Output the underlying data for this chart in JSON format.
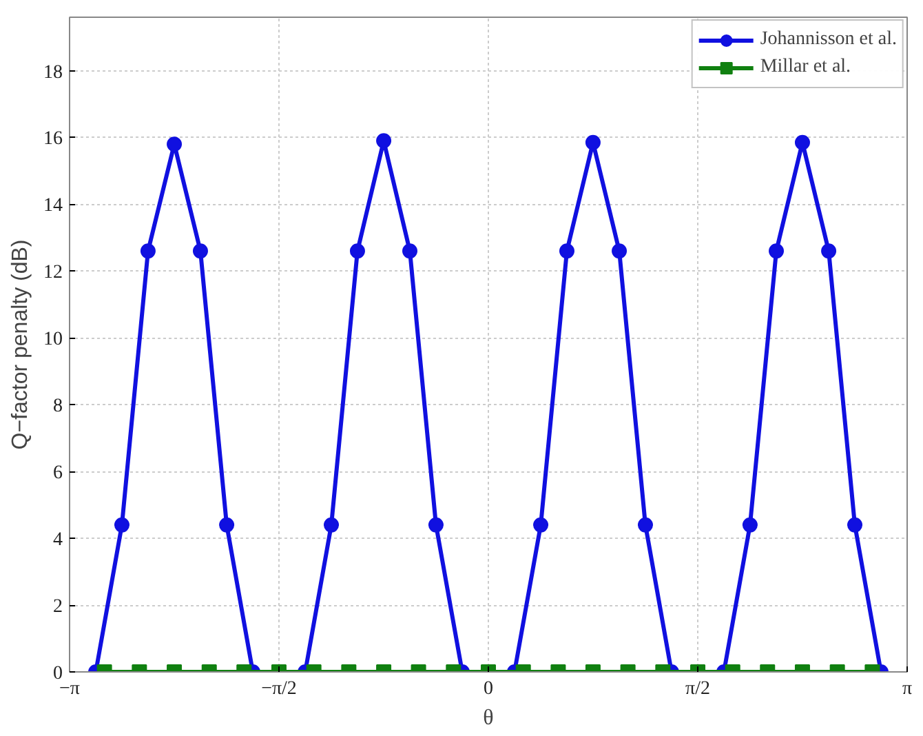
{
  "chart_data": {
    "type": "line",
    "xlabel": "θ",
    "ylabel": "Q−factor penalty (dB)",
    "xlim": [
      -3.1416,
      3.1416
    ],
    "ylim": [
      0,
      19.6
    ],
    "xticks": [
      {
        "value": -3.1416,
        "label": "−π"
      },
      {
        "value": -1.5708,
        "label": "−π/2"
      },
      {
        "value": 0,
        "label": "0"
      },
      {
        "value": 1.5708,
        "label": "π/2"
      },
      {
        "value": 3.1416,
        "label": "π"
      }
    ],
    "yticks": [
      0,
      2,
      4,
      6,
      8,
      10,
      12,
      14,
      16,
      18
    ],
    "grid": true,
    "legend": "top right",
    "line_style": "solid",
    "series": [
      {
        "name": "Johannisson et al.",
        "color": "#1010e0",
        "marker": "circle",
        "x": [
          -2.945,
          -2.749,
          -2.553,
          -2.356,
          -2.16,
          -1.963,
          -1.767,
          -1.374,
          -1.178,
          -0.982,
          -0.785,
          -0.589,
          -0.393,
          -0.196,
          0.196,
          0.393,
          0.589,
          0.785,
          0.982,
          1.178,
          1.374,
          1.767,
          1.963,
          2.16,
          2.356,
          2.553,
          2.749,
          2.945
        ],
        "values": [
          0,
          4.4,
          12.6,
          15.8,
          12.6,
          4.4,
          0,
          0,
          4.4,
          12.6,
          15.9,
          12.6,
          4.4,
          0,
          0,
          4.4,
          12.6,
          15.85,
          12.6,
          4.4,
          0,
          0,
          4.4,
          12.6,
          15.85,
          12.6,
          4.4,
          0
        ]
      },
      {
        "name": "Millar et al.",
        "color": "#108010",
        "marker": "square",
        "x": [
          -2.88,
          -2.618,
          -2.356,
          -2.094,
          -1.833,
          -1.571,
          -1.309,
          -1.047,
          -0.785,
          -0.524,
          -0.262,
          0,
          0.262,
          0.524,
          0.785,
          1.047,
          1.309,
          1.571,
          1.833,
          2.094,
          2.356,
          2.618,
          2.88
        ],
        "values": [
          0,
          0,
          0,
          0,
          0,
          0,
          0,
          0,
          0,
          0,
          0,
          0,
          0,
          0,
          0,
          0,
          0,
          0,
          0,
          0,
          0,
          0,
          0
        ]
      }
    ]
  }
}
